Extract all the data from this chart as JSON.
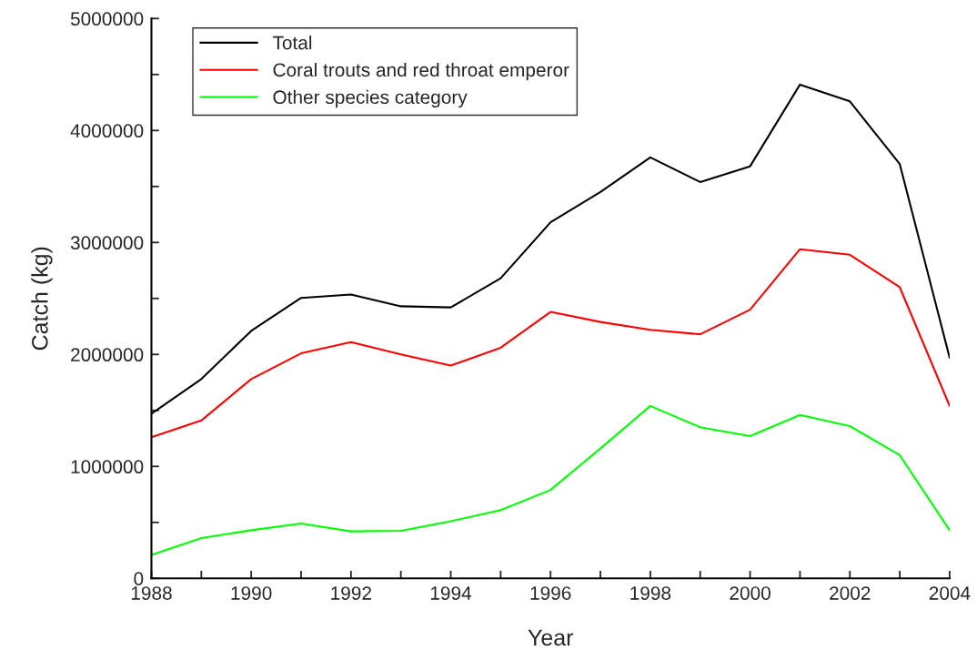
{
  "chart_data": {
    "type": "line",
    "xlabel": "Year",
    "ylabel": "Catch (kg)",
    "x": [
      1988,
      1989,
      1990,
      1991,
      1992,
      1993,
      1994,
      1995,
      1996,
      1997,
      1998,
      1999,
      2000,
      2001,
      2002,
      2003,
      2004
    ],
    "series": [
      {
        "name": "Total",
        "color": "#000000",
        "values": [
          1470000,
          1780000,
          2210000,
          2505000,
          2535000,
          2430000,
          2420000,
          2680000,
          3180000,
          3450000,
          3760000,
          3540000,
          3680000,
          4410000,
          4260000,
          3700000,
          1970000
        ]
      },
      {
        "name": "Coral trouts and red throat emperor",
        "color": "#ff0000",
        "values": [
          1260000,
          1410000,
          1780000,
          2010000,
          2110000,
          2000000,
          1900000,
          2060000,
          2380000,
          2290000,
          2220000,
          2180000,
          2400000,
          2940000,
          2890000,
          2600000,
          1540000
        ]
      },
      {
        "name": "Other species category",
        "color": "#00ff00",
        "values": [
          210000,
          360000,
          430000,
          490000,
          420000,
          425000,
          510000,
          610000,
          790000,
          1160000,
          1540000,
          1350000,
          1270000,
          1460000,
          1360000,
          1100000,
          430000
        ]
      }
    ],
    "xlim": [
      1988,
      2004
    ],
    "xticks": [
      1988,
      {
        "value": 1989,
        "label": null
      },
      1990,
      {
        "value": 1991,
        "label": null
      },
      1992,
      {
        "value": 1993,
        "label": null
      },
      1994,
      {
        "value": 1995,
        "label": null
      },
      1996,
      {
        "value": 1997,
        "label": null
      },
      1998,
      {
        "value": 1999,
        "label": null
      },
      2000,
      {
        "value": 2001,
        "label": null
      },
      2002,
      {
        "value": 2003,
        "label": null
      },
      2004
    ],
    "ylim": [
      0,
      5000000
    ],
    "yticks": [
      0,
      {
        "value": 500000,
        "label": null
      },
      1000000,
      {
        "value": 1500000,
        "label": null
      },
      2000000,
      {
        "value": 2500000,
        "label": null
      },
      3000000,
      {
        "value": 3500000,
        "label": null
      },
      4000000,
      {
        "value": 4500000,
        "label": null
      },
      5000000
    ],
    "grid": false,
    "legend": "top left",
    "marker": "none",
    "line_style": "solid"
  }
}
